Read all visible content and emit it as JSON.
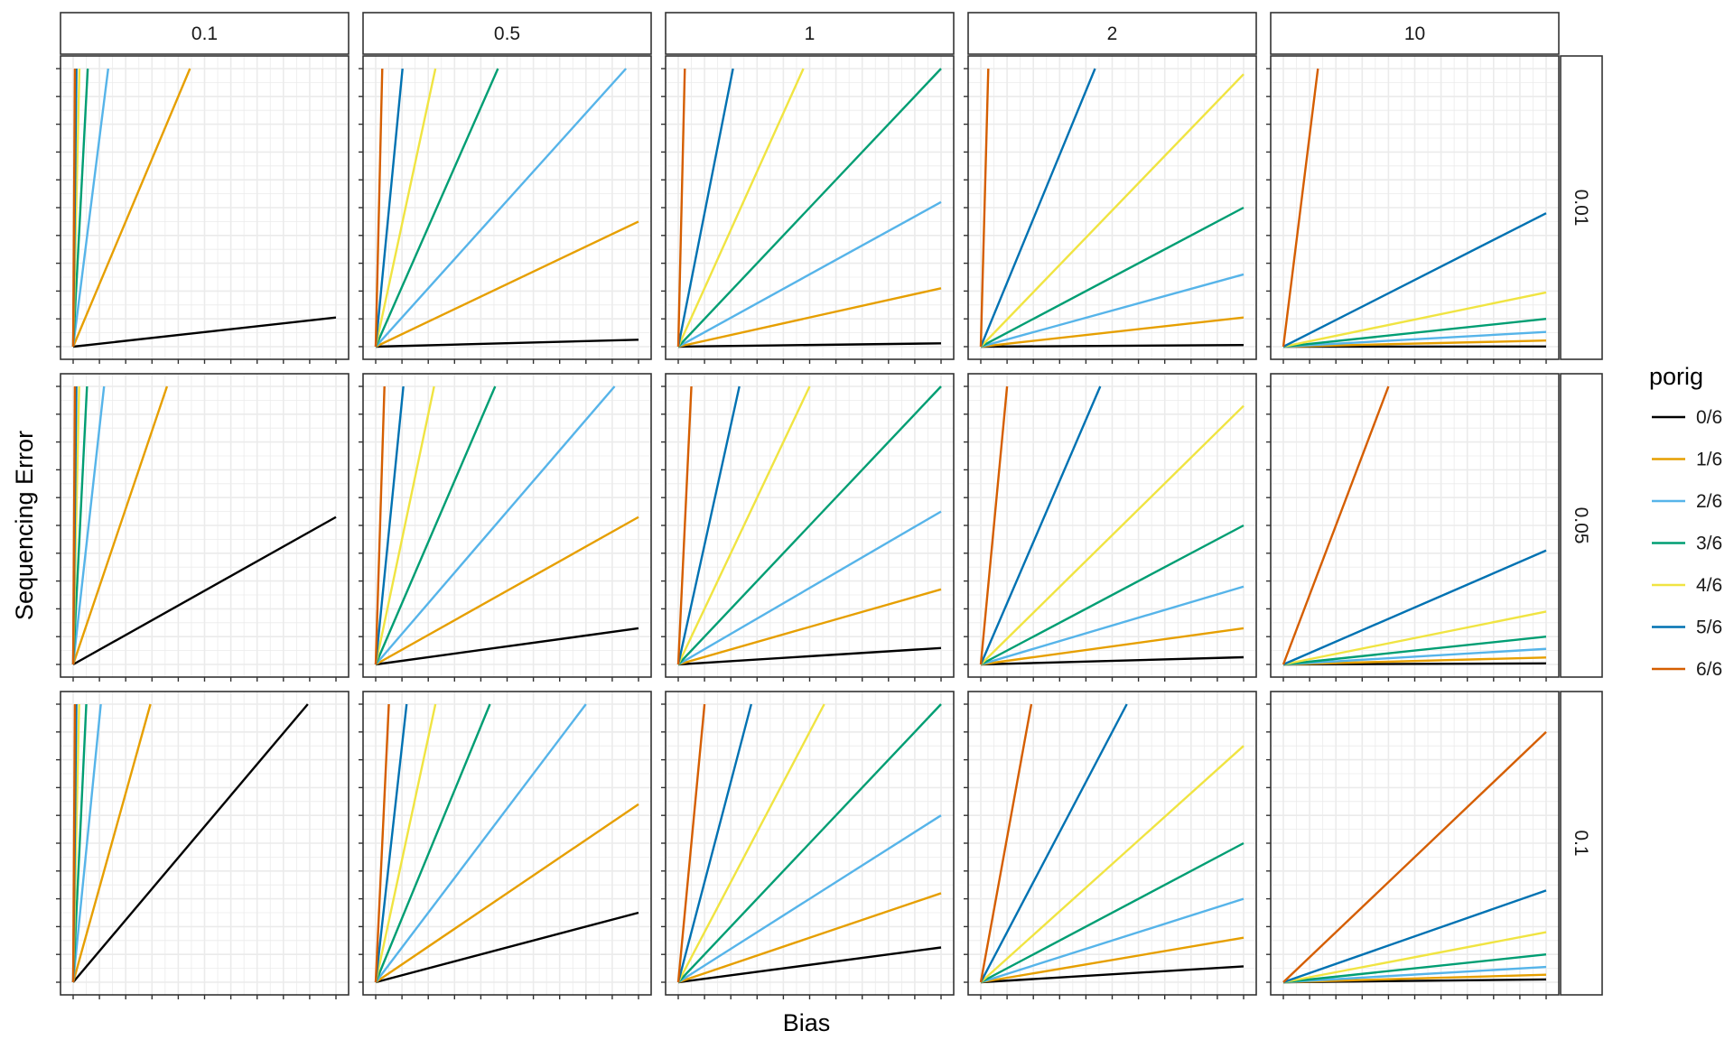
{
  "chart_data": {
    "type": "line",
    "layout": "facet-grid",
    "xlabel": "Bias",
    "ylabel": "Sequencing Error",
    "col_facets": [
      "0.1",
      "0.5",
      "1",
      "2",
      "10"
    ],
    "row_facets": [
      "0.01",
      "0.05",
      "0.1"
    ],
    "x_ticks_labeled": false,
    "y_ticks_labeled": false,
    "grid": true,
    "legend": {
      "title": "porig",
      "placement": "right",
      "entries": [
        "0/6",
        "1/6",
        "2/6",
        "3/6",
        "4/6",
        "5/6",
        "6/6"
      ]
    },
    "colors": {
      "0/6": "#000000",
      "1/6": "#E69F00",
      "2/6": "#56B4E9",
      "3/6": "#009E73",
      "4/6": "#F0E442",
      "5/6": "#0072B2",
      "6/6": "#D55E00"
    },
    "line_slopes": {
      "0.1": {
        "0.01": [
          0.105,
          2.25,
          7.5,
          18,
          42,
          80,
          150
        ],
        "0.05": [
          0.53,
          2.8,
          8.5,
          19,
          44,
          82,
          150
        ],
        "0.1": [
          1.12,
          3.4,
          9.5,
          20,
          44,
          82,
          150
        ]
      },
      "0.5": {
        "0.01": [
          0.025,
          0.45,
          1.05,
          2.15,
          4.4,
          9.8,
          40
        ],
        "0.05": [
          0.13,
          0.53,
          1.1,
          2.2,
          4.5,
          9.5,
          30
        ],
        "0.1": [
          0.25,
          0.64,
          1.25,
          2.3,
          4.4,
          8.5,
          20
        ]
      },
      "1": {
        "0.01": [
          0.012,
          0.21,
          0.52,
          1.0,
          2.1,
          4.8,
          40
        ],
        "0.05": [
          0.059,
          0.27,
          0.55,
          1.0,
          2.0,
          4.3,
          20
        ],
        "0.1": [
          0.125,
          0.32,
          0.6,
          1.0,
          1.8,
          3.6,
          10
        ]
      },
      "2": {
        "0.01": [
          0.006,
          0.105,
          0.26,
          0.5,
          0.98,
          2.3,
          35
        ],
        "0.05": [
          0.026,
          0.13,
          0.28,
          0.5,
          0.93,
          2.2,
          10
        ],
        "0.1": [
          0.057,
          0.16,
          0.3,
          0.5,
          0.85,
          1.8,
          5.2
        ]
      },
      "10": {
        "0.01": [
          0.0007,
          0.022,
          0.053,
          0.1,
          0.195,
          0.48,
          7.6
        ],
        "0.05": [
          0.004,
          0.025,
          0.056,
          0.1,
          0.19,
          0.41,
          2.5
        ],
        "0.1": [
          0.01,
          0.027,
          0.055,
          0.1,
          0.18,
          0.33,
          0.9
        ]
      }
    }
  }
}
